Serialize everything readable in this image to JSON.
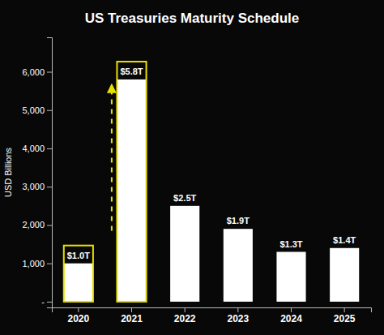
{
  "chart_data": {
    "type": "bar",
    "title": "US Treasuries Maturity Schedule",
    "categories": [
      "2020",
      "2021",
      "2022",
      "2023",
      "2024",
      "2025"
    ],
    "values": [
      1000,
      5800,
      2500,
      1900,
      1300,
      1400
    ],
    "value_labels": [
      "$1.0T",
      "$5.8T",
      "$2.5T",
      "$1.9T",
      "$1.3T",
      "$1.4T"
    ],
    "data_labels": true,
    "color": "#ffffff",
    "ylabel": "USD Billions",
    "ylim": [
      -150,
      6900
    ],
    "yticks": [
      {
        "value": 0,
        "label": "-"
      },
      {
        "value": 1000,
        "label": "1,000"
      },
      {
        "value": 2000,
        "label": "2,000"
      },
      {
        "value": 3000,
        "label": "3,000"
      },
      {
        "value": 4000,
        "label": "4,000"
      },
      {
        "value": 5000,
        "label": "5,000"
      },
      {
        "value": 6000,
        "label": "6,000"
      }
    ],
    "grid": false,
    "annotations": [
      {
        "type": "highlight",
        "categories": [
          "2020",
          "2021"
        ],
        "color": "#e8e000"
      },
      {
        "type": "arrow",
        "y_start": 1850,
        "y_end": 5650,
        "color": "#e8e000"
      }
    ]
  }
}
